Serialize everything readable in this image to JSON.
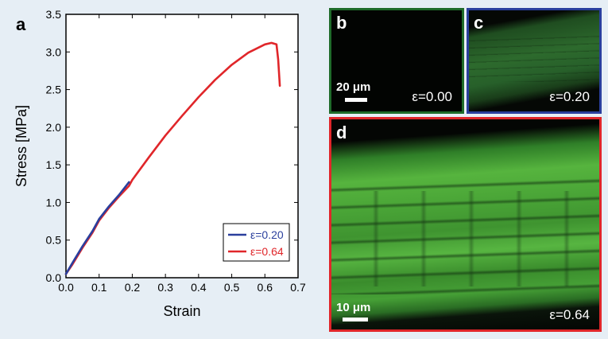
{
  "chart_data": {
    "type": "line",
    "panel_label": "a",
    "xlabel": "Strain",
    "ylabel": "Stress [MPa]",
    "xlim": [
      0.0,
      0.7
    ],
    "ylim": [
      0.0,
      3.5
    ],
    "xticks": [
      "0.0",
      "0.1",
      "0.2",
      "0.3",
      "0.4",
      "0.5",
      "0.6",
      "0.7"
    ],
    "yticks": [
      "0.0",
      "0.5",
      "1.0",
      "1.5",
      "2.0",
      "2.5",
      "3.0",
      "3.5"
    ],
    "grid": false,
    "legend_position": "bottom-right",
    "series": [
      {
        "name": "ε=0.20",
        "color": "#2a3f9d",
        "x": [
          0.0,
          0.02,
          0.05,
          0.08,
          0.1,
          0.13,
          0.16,
          0.19
        ],
        "y": [
          0.05,
          0.2,
          0.42,
          0.62,
          0.78,
          0.95,
          1.1,
          1.27
        ]
      },
      {
        "name": "ε=0.64",
        "color": "#e0262a",
        "x": [
          0.0,
          0.02,
          0.05,
          0.08,
          0.1,
          0.13,
          0.16,
          0.19,
          0.2,
          0.25,
          0.3,
          0.35,
          0.4,
          0.45,
          0.5,
          0.55,
          0.6,
          0.62,
          0.635,
          0.64,
          0.645
        ],
        "y": [
          0.05,
          0.18,
          0.4,
          0.6,
          0.76,
          0.93,
          1.08,
          1.22,
          1.3,
          1.6,
          1.89,
          2.15,
          2.4,
          2.63,
          2.83,
          2.99,
          3.1,
          3.12,
          3.1,
          2.9,
          2.55
        ]
      }
    ]
  },
  "micrographs": {
    "b": {
      "letter": "b",
      "strain_label": "ε=0.00",
      "scale_label": "20 μm",
      "border_color": "#1f6b2a"
    },
    "c": {
      "letter": "c",
      "strain_label": "ε=0.20",
      "border_color": "#2a3f9d"
    },
    "d": {
      "letter": "d",
      "strain_label": "ε=0.64",
      "scale_label": "10 μm",
      "border_color": "#e0262a"
    }
  }
}
